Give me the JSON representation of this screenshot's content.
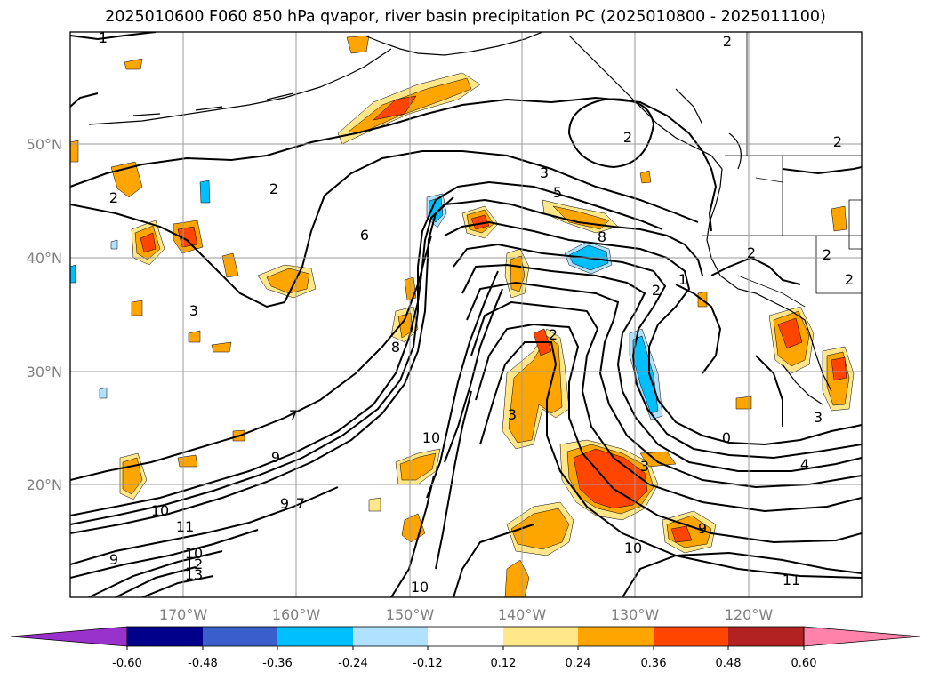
{
  "title": "2025010600 F060 850 hPa qvapor, river basin precipitation PC (2025010800 - 2025011100)",
  "lat_labels": [
    "50°N",
    "40°N",
    "30°N",
    "20°N"
  ],
  "lon_labels": [
    "170°W",
    "160°W",
    "150°W",
    "140°W",
    "130°W",
    "120°W"
  ],
  "colorbar": {
    "colors": [
      "#9932cc",
      "#00008b",
      "#3a5fcd",
      "#00bfff",
      "#b0e2ff",
      "#ffffff",
      "#ffe78a",
      "#ffa500",
      "#ff4500",
      "#b22222",
      "#ff82ab"
    ],
    "labels": [
      "-0.60",
      "-0.48",
      "-0.36",
      "-0.24",
      "-0.12",
      "0.12",
      "0.24",
      "0.36",
      "0.48",
      "0.60"
    ]
  },
  "contour_labels": [
    "1",
    "2",
    "2",
    "2",
    "2",
    "2",
    "2",
    "2",
    "3",
    "3",
    "5",
    "6",
    "8",
    "8",
    "2",
    "3",
    "2",
    "2",
    "1",
    "3",
    "4",
    "0",
    "7",
    "9",
    "9",
    "10",
    "10",
    "11",
    "10",
    "12",
    "13",
    "9",
    "7",
    "10",
    "9",
    "3",
    "11",
    "10"
  ]
}
